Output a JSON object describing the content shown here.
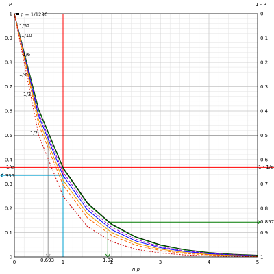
{
  "chart_data": {
    "type": "line",
    "xlabel": "n p",
    "ylabel_left": "P",
    "ylabel_right": "1 - P",
    "xlim": [
      0,
      5
    ],
    "ylim": [
      0,
      1
    ],
    "x_ticks": [
      "0",
      "1",
      "2",
      "3",
      "4",
      "5"
    ],
    "y_ticks_left": [
      "0",
      "0.1",
      "0.2",
      "0.3",
      "0.4",
      "0.5",
      "0.6",
      "0.7",
      "0.8",
      "0.9",
      "1"
    ],
    "y_ticks_right": [
      "1",
      "0.9",
      "0.8",
      "0.7",
      "0.6",
      "0.5",
      "0.4",
      "0.3",
      "0.2",
      "0.1",
      "0"
    ],
    "grid": true,
    "series": [
      {
        "name": "p = 1/1296",
        "color": "#000000",
        "style": "solid",
        "x": [
          0,
          0.5,
          1,
          1.5,
          2,
          2.5,
          3,
          3.5,
          4,
          4.5,
          5
        ],
        "y": [
          1,
          0.607,
          0.368,
          0.223,
          0.135,
          0.082,
          0.05,
          0.03,
          0.018,
          0.011,
          0.007
        ]
      },
      {
        "name": "1/52",
        "color": "#007a00",
        "style": "solid",
        "x": [
          0,
          0.5,
          1,
          1.5,
          2,
          2.5,
          3,
          3.5,
          4,
          4.5,
          5
        ],
        "y": [
          1,
          0.603,
          0.364,
          0.219,
          0.132,
          0.08,
          0.048,
          0.029,
          0.017,
          0.01,
          0.006
        ]
      },
      {
        "name": "1/10",
        "color": "#8b00c8",
        "style": "dashed",
        "x": [
          0,
          0.5,
          1,
          1.5,
          2,
          2.5,
          3,
          3.5,
          4,
          4.5,
          5
        ],
        "y": [
          1,
          0.59,
          0.349,
          0.206,
          0.122,
          0.072,
          0.042,
          0.025,
          0.015,
          0.009,
          0.005
        ]
      },
      {
        "name": "1/6",
        "color": "#0000ff",
        "style": "solid",
        "x": [
          0,
          0.5,
          1,
          1.5,
          2,
          2.5,
          3,
          3.5,
          4,
          4.5,
          5
        ],
        "y": [
          1,
          0.579,
          0.335,
          0.194,
          0.112,
          0.065,
          0.038,
          0.022,
          0.013,
          0.007,
          0.004
        ]
      },
      {
        "name": "1/4",
        "color": "#ee9a00",
        "style": "solid",
        "x": [
          0,
          0.5,
          1,
          1.5,
          2,
          2.5,
          3,
          3.5,
          4,
          4.5,
          5
        ],
        "y": [
          1,
          0.563,
          0.316,
          0.178,
          0.1,
          0.056,
          0.032,
          0.018,
          0.01,
          0.006,
          0.003
        ]
      },
      {
        "name": "1/3",
        "color": "#ff6600",
        "style": "dashed",
        "x": [
          0,
          0.5,
          1,
          1.5,
          2,
          2.5,
          3,
          3.5,
          4,
          4.5,
          5
        ],
        "y": [
          1,
          0.544,
          0.296,
          0.161,
          0.088,
          0.048,
          0.026,
          0.014,
          0.008,
          0.004,
          0.002
        ]
      },
      {
        "name": "1/2",
        "color": "#cc0000",
        "style": "dotted",
        "x": [
          0,
          0.5,
          1,
          1.5,
          2,
          2.5,
          3,
          3.5,
          4,
          4.5,
          5
        ],
        "y": [
          1,
          0.5,
          0.25,
          0.125,
          0.0625,
          0.031,
          0.016,
          0.008,
          0.004,
          0.002,
          0.001
        ]
      }
    ],
    "annotations": {
      "one_over_e": {
        "label_left": "1/e",
        "label_right": "1 - 1/e",
        "value": 0.368,
        "color": "#ff0000"
      },
      "half": {
        "value": 0.5,
        "color": "#aaaaaa"
      },
      "x_one": {
        "value": 1,
        "color": "#ff0000"
      },
      "ln2": {
        "label": "0.693",
        "value": 0.693,
        "color": "#999999"
      },
      "one_sixth_at_one": {
        "label": "0.335",
        "value": 0.335,
        "color": "#00a0d0"
      },
      "x_192": {
        "label": "1.92",
        "x": 1.92,
        "y": 0.143,
        "color": "#007a00"
      },
      "right_0857": {
        "label": "0.857",
        "color": "#007a00"
      }
    }
  }
}
